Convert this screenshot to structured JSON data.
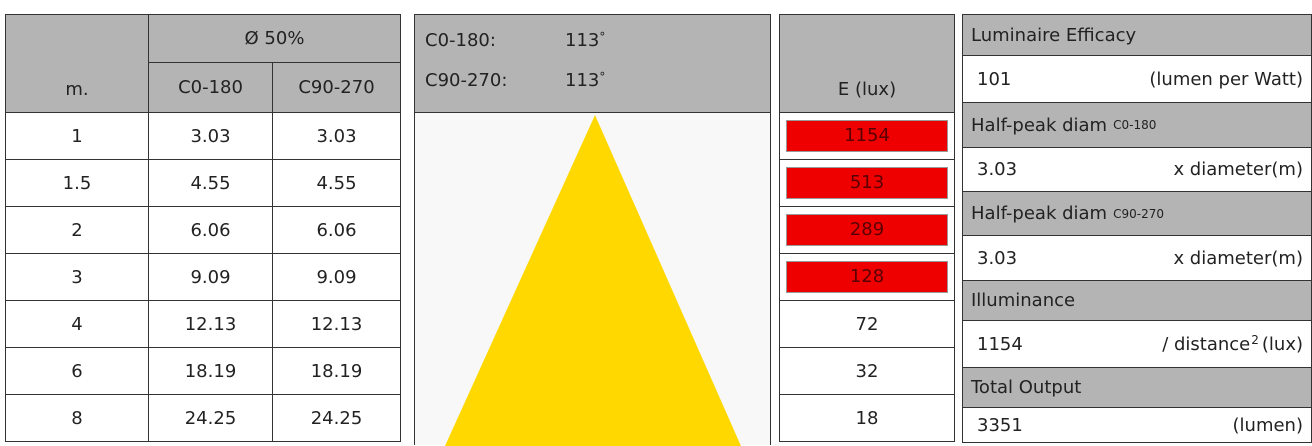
{
  "left_table": {
    "header_group": "Ø 50%",
    "headers": [
      "m.",
      "C0-180",
      "C90-270"
    ],
    "rows": [
      [
        "1",
        "3.03",
        "3.03"
      ],
      [
        "1.5",
        "4.55",
        "4.55"
      ],
      [
        "2",
        "6.06",
        "6.06"
      ],
      [
        "3",
        "9.09",
        "9.09"
      ],
      [
        "4",
        "12.13",
        "12.13"
      ],
      [
        "6",
        "18.19",
        "18.19"
      ],
      [
        "8",
        "24.25",
        "24.25"
      ]
    ]
  },
  "beam": {
    "angles": [
      {
        "label": "C0-180:",
        "value": "113",
        "unit": "°"
      },
      {
        "label": "C90-270:",
        "value": "113",
        "unit": "°"
      }
    ]
  },
  "illuminance_table": {
    "header": "E (lux)",
    "rows": [
      {
        "value": "1154",
        "highlight": true
      },
      {
        "value": "513",
        "highlight": true
      },
      {
        "value": "289",
        "highlight": true
      },
      {
        "value": "128",
        "highlight": true
      },
      {
        "value": "72",
        "highlight": false
      },
      {
        "value": "32",
        "highlight": false
      },
      {
        "value": "18",
        "highlight": false
      }
    ]
  },
  "summary": [
    {
      "label": "Luminaire Efficacy",
      "value": "101",
      "unit": "(lumen per Watt)"
    },
    {
      "label": "Half-peak diam",
      "label_sub": "C0-180",
      "value": "3.03",
      "unit": "x diameter(m)"
    },
    {
      "label": "Half-peak diam",
      "label_sub": "C90-270",
      "value": "3.03",
      "unit": "x diameter(m)"
    },
    {
      "label": "Illuminance",
      "value": "1154",
      "unit": "/ distance",
      "unit_sup": "2",
      "unit_after": "(lux)"
    },
    {
      "label": "Total Output",
      "value": "3351",
      "unit": "(lumen)"
    }
  ]
}
